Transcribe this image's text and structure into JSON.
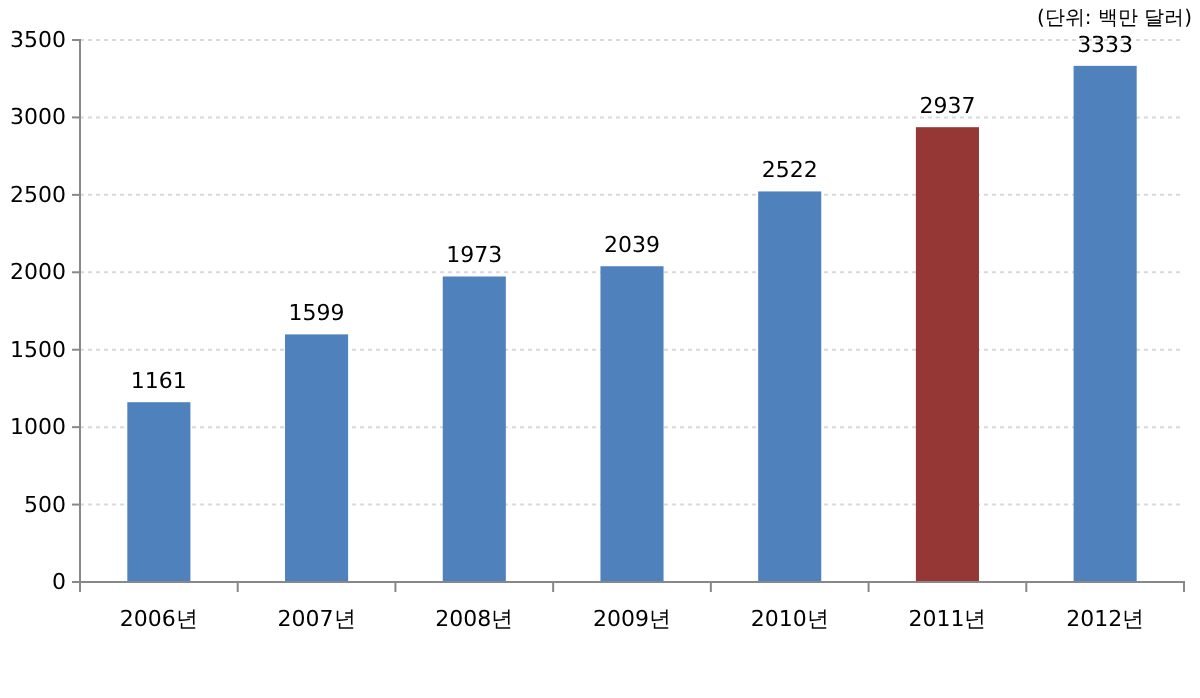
{
  "chart_data": {
    "type": "bar",
    "categories": [
      "2006년",
      "2007년",
      "2008년",
      "2009년",
      "2010년",
      "2011년",
      "2012년"
    ],
    "values": [
      1161,
      1599,
      1973,
      2039,
      2522,
      2937,
      3333
    ],
    "colors": [
      "#4f81bd",
      "#4f81bd",
      "#4f81bd",
      "#4f81bd",
      "#4f81bd",
      "#953735",
      "#4f81bd"
    ],
    "ylim": [
      0,
      3500
    ],
    "yticks": [
      0,
      500,
      1000,
      1500,
      2000,
      2500,
      3000,
      3500
    ],
    "grid": "y",
    "data_labels": true,
    "annotations": [
      "(단위: 백만 달러)"
    ]
  }
}
